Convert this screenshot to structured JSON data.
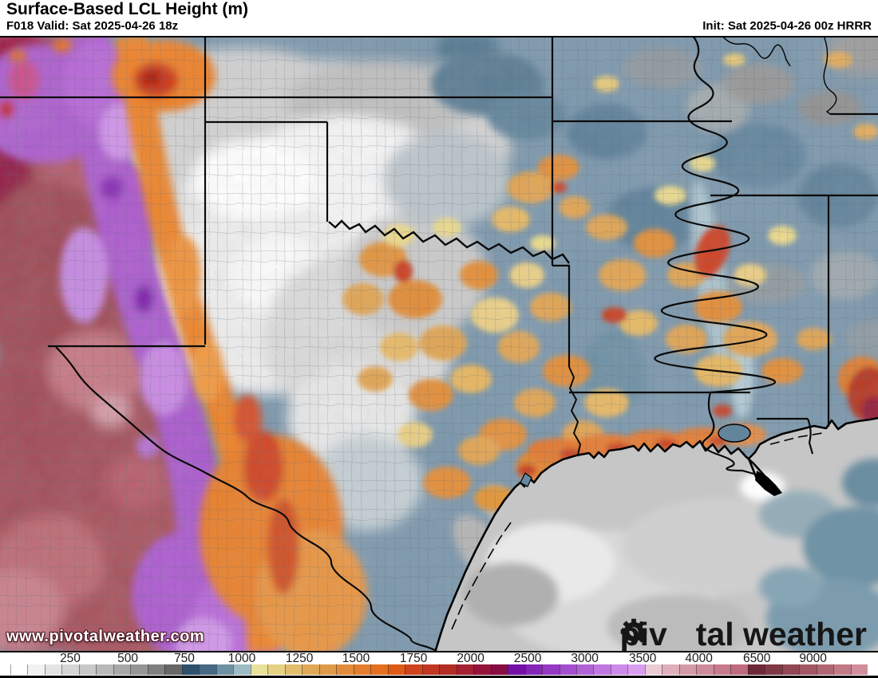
{
  "header": {
    "title": "Surface-Based LCL Height (m)",
    "forecast": "F018 Valid: Sat 2025-04-26 18z",
    "init": "Init: Sat 2025-04-26 00z HRRR"
  },
  "map": {
    "watermark": "www.pivotalweather.com",
    "logo_prefix": "piv",
    "logo_suffix": "tal weather",
    "logo_icon": "gear-icon"
  },
  "colorbar": {
    "unit": "m",
    "tick_labels": [
      "250",
      "500",
      "750",
      "1000",
      "1250",
      "1500",
      "1750",
      "2000",
      "2500",
      "3000",
      "3500",
      "4000",
      "6500",
      "9000"
    ],
    "tick_positions_pct": [
      8.0,
      14.55,
      21.0,
      27.55,
      34.1,
      40.55,
      47.1,
      53.6,
      60.1,
      66.6,
      73.2,
      79.6,
      86.2,
      92.6
    ],
    "segment_colors": [
      "#ffffff",
      "#f2f2f2",
      "#e4e4e4",
      "#d6d6d6",
      "#c8c8c8",
      "#b9b9b9",
      "#a8a8a8",
      "#959595",
      "#7f7f7f",
      "#676767",
      "#2f506b",
      "#456884",
      "#6e90a3",
      "#9cbbc4",
      "#e8e29a",
      "#e6d285",
      "#e3bd6d",
      "#e0a958",
      "#df9a4a",
      "#e08c3c",
      "#e27e2e",
      "#e46f1f",
      "#dd5a17",
      "#cf431f",
      "#c23622",
      "#b42d25",
      "#a32132",
      "#94143b",
      "#860c42",
      "#7410a6",
      "#8425b6",
      "#9539c3",
      "#a34ecd",
      "#b162d6",
      "#bf76df",
      "#cd8ae8",
      "#da9ef1",
      "#ebcbd4",
      "#dfb0bc",
      "#d59aa8",
      "#cd8a9a",
      "#c77a8c",
      "#c06a7e",
      "#6d2a36",
      "#7f3945",
      "#914854",
      "#a15764",
      "#b16773",
      "#c17a86",
      "#d08f9b"
    ]
  },
  "colors": {
    "map_base": "#7995aa",
    "border": "#000000"
  }
}
